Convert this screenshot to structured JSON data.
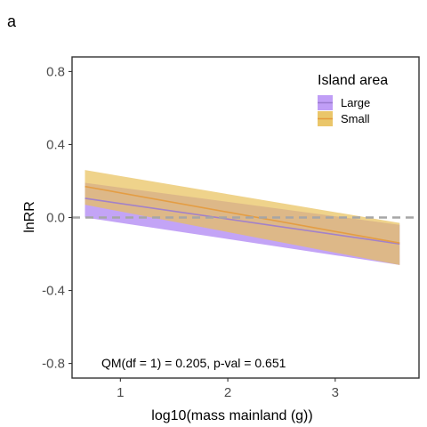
{
  "chart_data": {
    "type": "line",
    "panel_label": "a",
    "xlabel": "log10(mass mainland (g))",
    "ylabel": "lnRR",
    "xlim": [
      0.55,
      3.78
    ],
    "ylim": [
      -0.88,
      0.88
    ],
    "x_ticks": [
      1,
      2,
      3
    ],
    "x_tick_labels": [
      "1",
      "2",
      "3"
    ],
    "y_ticks": [
      -0.8,
      -0.4,
      0.0,
      0.4,
      0.8
    ],
    "y_tick_labels": [
      "-0.8",
      "-0.4",
      "0.0",
      "0.4",
      "0.8"
    ],
    "grid": false,
    "reference_line": {
      "y": 0.0,
      "style": "dashed",
      "color": "#a6a6a6"
    },
    "legend": {
      "title": "Island area",
      "placement": "top-right"
    },
    "annotation": "QM(df = 1) = 0.205, p-val = 0.651",
    "series": [
      {
        "name": "Large",
        "color": "#9b7bd0",
        "fill": "#b994f5",
        "x": [
          0.67,
          3.6
        ],
        "y": [
          0.105,
          -0.145
        ],
        "lower": [
          0.0,
          -0.26
        ],
        "upper": [
          0.19,
          -0.04
        ]
      },
      {
        "name": "Small",
        "color": "#e49a3c",
        "fill": "#e8c05a",
        "x": [
          0.67,
          3.6
        ],
        "y": [
          0.17,
          -0.14
        ],
        "lower": [
          0.07,
          -0.26
        ],
        "upper": [
          0.26,
          -0.03
        ]
      }
    ]
  }
}
